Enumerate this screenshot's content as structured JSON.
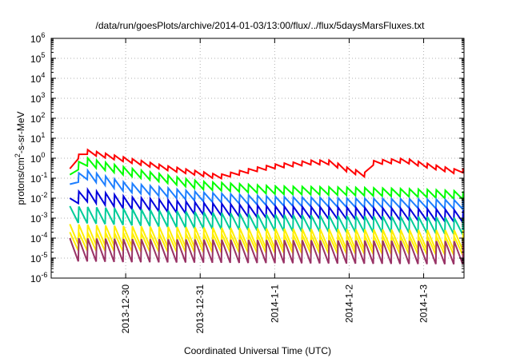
{
  "chart_data": {
    "type": "line",
    "title": "/data/run/goesPlots/archive/2014-01-03/13:00/flux/../flux/5daysMarsFluxes.txt",
    "xlabel": "Coordinated Universal Time (UTC)",
    "ylabel": "protons/cm²-s-sr-MeV",
    "yscale": "log",
    "ylim_exp": [
      -6,
      6
    ],
    "y_tick_exponents": [
      -6,
      -5,
      -4,
      -3,
      -2,
      -1,
      0,
      1,
      2,
      3,
      4,
      5,
      6
    ],
    "xlim": [
      "2013-12-29 00:00",
      "2014-01-03 13:00"
    ],
    "x_ticks": [
      {
        "date": "2013-12-30",
        "label": "2013-12-30"
      },
      {
        "date": "2013-12-31",
        "label": "2013-12-31"
      },
      {
        "date": "2014-01-01",
        "label": "2014-1-1"
      },
      {
        "date": "2014-01-02",
        "label": "2014-1-2"
      },
      {
        "date": "2014-01-03",
        "label": "2014-1-3"
      }
    ],
    "grid": true,
    "series": [
      {
        "color": "#ff0000",
        "sawtooth_days": 0.12,
        "ramp_factor": 0.6,
        "points": [
          [
            "2013-12-29 06:00",
            0.3
          ],
          [
            "2013-12-29 10:00",
            3.0
          ],
          [
            "2013-12-30 00:00",
            1.1
          ],
          [
            "2013-12-30 12:00",
            0.45
          ],
          [
            "2013-12-31 00:00",
            0.22
          ],
          [
            "2013-12-31 06:00",
            0.15
          ],
          [
            "2013-12-31 18:00",
            0.35
          ],
          [
            "2014-01-01 00:00",
            0.5
          ],
          [
            "2014-01-01 12:00",
            0.8
          ],
          [
            "2014-01-01 18:00",
            0.8
          ],
          [
            "2014-01-02 00:00",
            0.32
          ],
          [
            "2014-01-02 06:00",
            0.18
          ],
          [
            "2014-01-02 08:00",
            0.8
          ],
          [
            "2014-01-02 18:00",
            1.0
          ],
          [
            "2014-01-03 00:00",
            0.6
          ],
          [
            "2014-01-03 12:00",
            0.25
          ],
          [
            "2014-01-03 13:00",
            0.35
          ]
        ]
      },
      {
        "color": "#00ff00",
        "sawtooth_days": 0.12,
        "ramp_factor": 0.4,
        "points": [
          [
            "2013-12-29 06:00",
            0.15
          ],
          [
            "2013-12-29 10:00",
            1.2
          ],
          [
            "2013-12-30 00:00",
            0.35
          ],
          [
            "2013-12-31 00:00",
            0.07
          ],
          [
            "2014-01-01 00:00",
            0.04
          ],
          [
            "2014-01-02 00:00",
            0.035
          ],
          [
            "2014-01-03 00:00",
            0.028
          ],
          [
            "2014-01-03 13:00",
            0.022
          ]
        ]
      },
      {
        "color": "#1e7fff",
        "sawtooth_days": 0.12,
        "ramp_factor": 0.35,
        "points": [
          [
            "2013-12-29 06:00",
            0.05
          ],
          [
            "2013-12-29 10:00",
            0.3
          ],
          [
            "2013-12-30 00:00",
            0.06
          ],
          [
            "2013-12-31 00:00",
            0.02
          ],
          [
            "2014-01-01 00:00",
            0.012
          ],
          [
            "2014-01-02 00:00",
            0.01
          ],
          [
            "2014-01-03 00:00",
            0.009
          ],
          [
            "2014-01-03 13:00",
            0.008
          ]
        ]
      },
      {
        "color": "#0000dd",
        "sawtooth_days": 0.12,
        "ramp_factor": 0.25,
        "points": [
          [
            "2013-12-29 06:00",
            0.01
          ],
          [
            "2013-12-29 10:00",
            0.03
          ],
          [
            "2013-12-30 00:00",
            0.012
          ],
          [
            "2013-12-31 00:00",
            0.006
          ],
          [
            "2014-01-01 00:00",
            0.004
          ],
          [
            "2014-01-02 00:00",
            0.0035
          ],
          [
            "2014-01-03 00:00",
            0.003
          ],
          [
            "2014-01-03 13:00",
            0.0025
          ]
        ]
      },
      {
        "color": "#00cc99",
        "sawtooth_days": 0.12,
        "ramp_factor": 0.15,
        "points": [
          [
            "2013-12-29 06:00",
            0.004
          ],
          [
            "2013-12-30 00:00",
            0.003
          ],
          [
            "2013-12-31 00:00",
            0.002
          ],
          [
            "2014-01-01 00:00",
            0.0015
          ],
          [
            "2014-01-02 00:00",
            0.0013
          ],
          [
            "2014-01-03 00:00",
            0.0012
          ],
          [
            "2014-01-03 13:00",
            0.001
          ]
        ]
      },
      {
        "color": "#ffee00",
        "sawtooth_days": 0.12,
        "ramp_factor": 0.1,
        "points": [
          [
            "2013-12-29 06:00",
            0.0005
          ],
          [
            "2013-12-30 00:00",
            0.0004
          ],
          [
            "2014-01-01 00:00",
            0.0003
          ],
          [
            "2014-01-03 13:00",
            0.00025
          ]
        ]
      },
      {
        "color": "#ffee00",
        "sawtooth_days": 0.12,
        "ramp_factor": 0.12,
        "points": [
          [
            "2013-12-29 06:00",
            0.0002
          ],
          [
            "2013-12-30 00:00",
            0.00018
          ],
          [
            "2014-01-01 00:00",
            0.00015
          ],
          [
            "2014-01-03 13:00",
            0.00012
          ]
        ]
      },
      {
        "color": "#993366",
        "sawtooth_days": 0.12,
        "ramp_factor": 0.07,
        "points": [
          [
            "2013-12-29 06:00",
            0.0001
          ],
          [
            "2013-12-30 00:00",
            9e-05
          ],
          [
            "2014-01-01 00:00",
            8e-05
          ],
          [
            "2014-01-03 13:00",
            7e-05
          ]
        ]
      }
    ]
  }
}
